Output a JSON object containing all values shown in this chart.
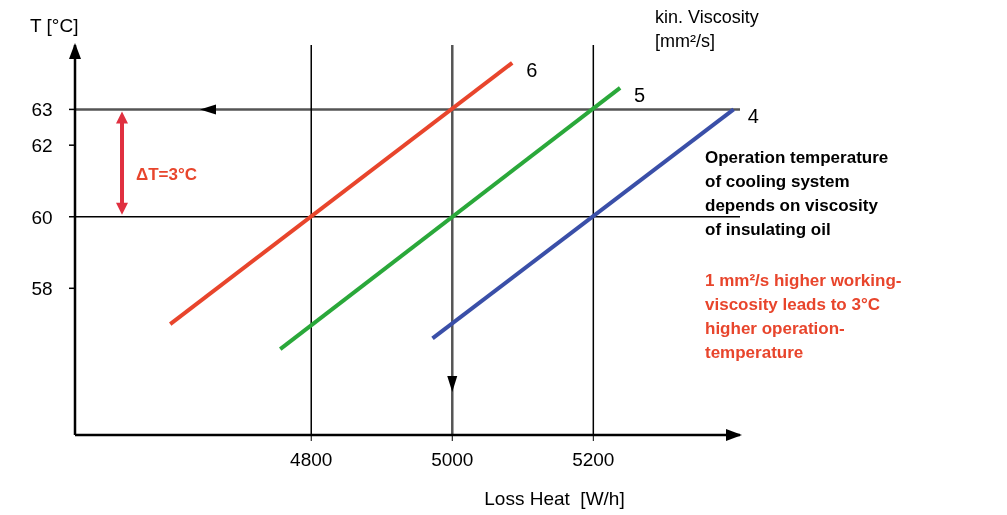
{
  "chart_data": {
    "type": "line",
    "xlabel": "Loss Heat  [W/h]",
    "ylabel": "T [°C]",
    "legend_title": "kin. Viscosity [mm²/s]",
    "series": [
      {
        "name": "6",
        "color": "#e8452c",
        "x": [
          4600,
          5085
        ],
        "values": [
          57,
          64.3
        ]
      },
      {
        "name": "5",
        "color": "#2aa83a",
        "x": [
          4756,
          5238
        ],
        "values": [
          56.3,
          63.6
        ]
      },
      {
        "name": "4",
        "color": "#3a4fa8",
        "x": [
          4972,
          5399
        ],
        "values": [
          56.6,
          63
        ]
      }
    ],
    "xlim": [
      4465,
      5408
    ],
    "ylim": [
      53.9,
      64.8
    ],
    "xticks": [
      4800,
      5000,
      5200
    ],
    "yticks": [
      58,
      60,
      62,
      63
    ],
    "ref_lines": [
      {
        "axis": "y",
        "value": 63,
        "color": "#555555"
      },
      {
        "axis": "y",
        "value": 60,
        "color": "#000000"
      },
      {
        "axis": "x",
        "value": 4800,
        "color": "#000000"
      },
      {
        "axis": "x",
        "value": 5000,
        "color": "#555555"
      },
      {
        "axis": "x",
        "value": 5200,
        "color": "#000000"
      }
    ],
    "annotations": [
      "ΔT=3°C",
      "Operation temperature of cooling system depends on viscosity of insulating oil",
      "1 mm²/s higher working-viscosity leads to 3°C higher operation-temperature"
    ],
    "grid": false,
    "marker": "none",
    "line_style": "solid"
  }
}
